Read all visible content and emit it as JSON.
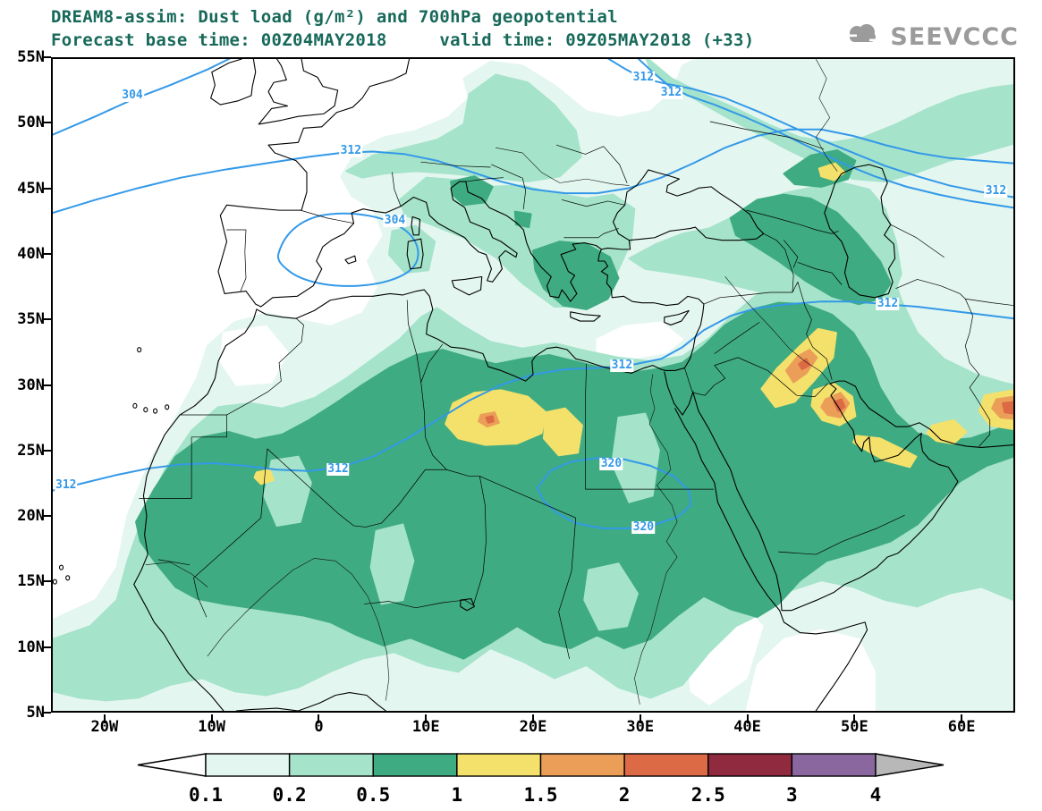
{
  "header": {
    "line1": "DREAM8-assim: Dust load (g/m²) and 700hPa geopotential",
    "line2": "Forecast base time: 00Z04MAY2018     valid time: 09Z05MAY2018 (+33)"
  },
  "logo": {
    "brand": "SEEVCCC"
  },
  "axes": {
    "lat_ticks": [
      {
        "label": "55N",
        "value": 55
      },
      {
        "label": "50N",
        "value": 50
      },
      {
        "label": "45N",
        "value": 45
      },
      {
        "label": "40N",
        "value": 40
      },
      {
        "label": "35N",
        "value": 35
      },
      {
        "label": "30N",
        "value": 30
      },
      {
        "label": "25N",
        "value": 25
      },
      {
        "label": "20N",
        "value": 20
      },
      {
        "label": "15N",
        "value": 15
      },
      {
        "label": "10N",
        "value": 10
      },
      {
        "label": "5N",
        "value": 5
      }
    ],
    "lon_ticks": [
      {
        "label": "20W",
        "value": -20
      },
      {
        "label": "10W",
        "value": -10
      },
      {
        "label": "0",
        "value": 0
      },
      {
        "label": "10E",
        "value": 10
      },
      {
        "label": "20E",
        "value": 20
      },
      {
        "label": "30E",
        "value": 30
      },
      {
        "label": "40E",
        "value": 40
      },
      {
        "label": "50E",
        "value": 50
      },
      {
        "label": "60E",
        "value": 60
      }
    ]
  },
  "contour_labels": [
    {
      "text": "304",
      "lon": -17.4,
      "lat": 52.1
    },
    {
      "text": "312",
      "lon": 3.0,
      "lat": 47.85
    },
    {
      "text": "312",
      "lon": 30.3,
      "lat": 53.45
    },
    {
      "text": "312",
      "lon": 32.9,
      "lat": 52.3
    },
    {
      "text": "304",
      "lon": 7.1,
      "lat": 42.55
    },
    {
      "text": "312",
      "lon": 63.2,
      "lat": 44.75
    },
    {
      "text": "312",
      "lon": -23.6,
      "lat": 22.3
    },
    {
      "text": "312",
      "lon": 1.8,
      "lat": 23.55
    },
    {
      "text": "312",
      "lon": 28.3,
      "lat": 31.45
    },
    {
      "text": "312",
      "lon": 53.1,
      "lat": 36.2
    },
    {
      "text": "320",
      "lon": 27.3,
      "lat": 23.95
    },
    {
      "text": "320",
      "lon": 30.3,
      "lat": 19.15
    }
  ],
  "colorbar": {
    "levels": [
      "0.1",
      "0.2",
      "0.5",
      "1",
      "1.5",
      "2",
      "2.5",
      "3",
      "4"
    ],
    "cell_colors": [
      "#e4f6f0",
      "#a5e3cb",
      "#3fab82",
      "#f4e16b",
      "#eb9e58",
      "#dc6a45",
      "#8f2a3f",
      "#8a679e"
    ],
    "arrow_left_color": "#ffffff",
    "arrow_right_color": "#b8b8b8"
  },
  "colors": {
    "title_text": "#17695a",
    "geopotential_line": "#3399e8",
    "coastline": "#000000",
    "logo_gray": "#9b9b9b"
  },
  "chart_data": {
    "type": "heatmap",
    "title": "DREAM8-assim: Dust load (g/m²) and 700hPa geopotential",
    "subtitle": "Forecast base time: 00Z04MAY2018  valid time: 09Z05MAY2018 (+33)",
    "model": "DREAM8-assim",
    "fill_variable": "Dust load (g/m²)",
    "contour_variable": "700hPa geopotential height (dam)",
    "map_extent": {
      "lon": [
        -25,
        65
      ],
      "lat": [
        5,
        55
      ]
    },
    "x_ticks": [
      "20W",
      "10W",
      "0",
      "10E",
      "20E",
      "30E",
      "40E",
      "50E",
      "60E"
    ],
    "y_ticks": [
      "5N",
      "10N",
      "15N",
      "20N",
      "25N",
      "30N",
      "35N",
      "40N",
      "45N",
      "50N",
      "55N"
    ],
    "fill_levels": [
      0.1,
      0.2,
      0.5,
      1,
      1.5,
      2,
      2.5,
      3,
      4
    ],
    "fill_colors": [
      "#ffffff",
      "#e4f6f0",
      "#a5e3cb",
      "#3fab82",
      "#f4e16b",
      "#eb9e58",
      "#dc6a45",
      "#8f2a3f",
      "#8a679e",
      "#b8b8b8"
    ],
    "geopotential_isolines": [
      304,
      312,
      320
    ],
    "legend_position": "bottom",
    "grid": false,
    "notable_features": [
      {
        "feature": "dust belt",
        "region": "Sahara-Sahel (~17W-35E, 12-32N)",
        "value_gm2": "0.5-1"
      },
      {
        "feature": "dust maximum",
        "region": "southern Libya / northern Chad (~12-25E, 24-30N)",
        "value_gm2": "1-2"
      },
      {
        "feature": "dust maximum",
        "region": "Mesopotamia-Zagros (~42-50E, 27-34N)",
        "value_gm2": "1.5-2.5"
      },
      {
        "feature": "dust maximum",
        "region": "Persian Gulf / UAE coast (~50-60E, 24-28N)",
        "value_gm2": "1-2"
      },
      {
        "feature": "dust spot",
        "region": "western Algeria (~5W, 23N)",
        "value_gm2": "1-1.5"
      },
      {
        "feature": "cut-off low",
        "region": "western Mediterranean (~0-8E, 38-43N)",
        "value": "304 dam"
      },
      {
        "feature": "ridge center",
        "region": "Sudan/Egypt (~20-35E, 19-24N)",
        "value": "320 dam"
      }
    ]
  }
}
